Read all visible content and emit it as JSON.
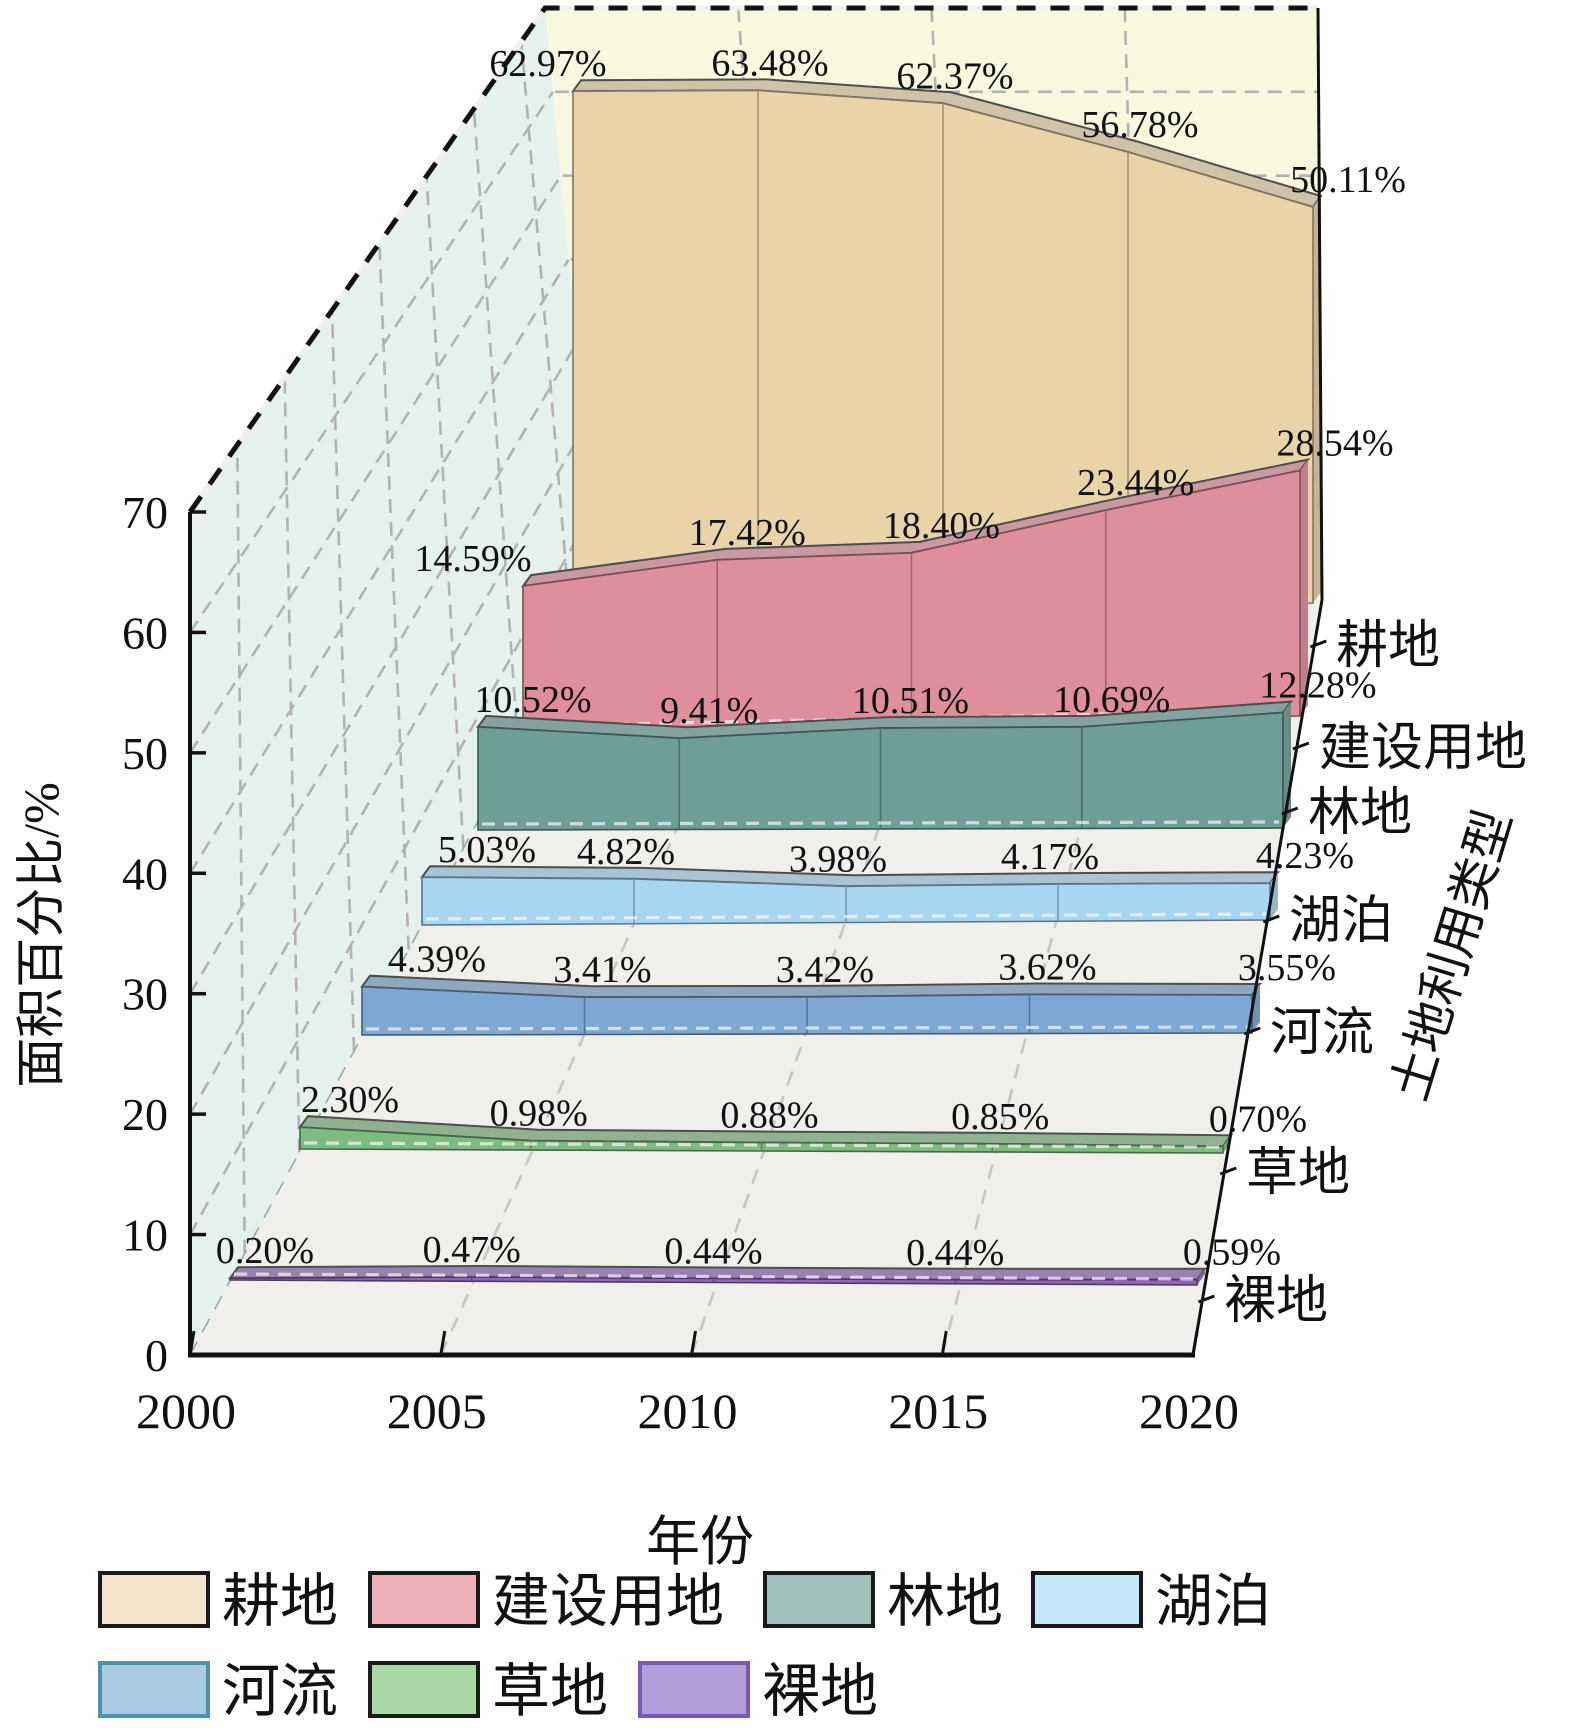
{
  "chart_data": {
    "type": "area",
    "variant": "3d-ribbon",
    "x": [
      2000,
      2005,
      2010,
      2015,
      2020
    ],
    "x_tick_labels": [
      "2000",
      "2005",
      "2010",
      "2015",
      "2020"
    ],
    "y_tick_labels": [
      "0",
      "10",
      "20",
      "30",
      "40",
      "50",
      "60",
      "70"
    ],
    "xlabel": "年份",
    "ylabel": "面积百分比/%",
    "zlabel": "土地利用类型",
    "ylim": [
      0,
      70
    ],
    "grid": true,
    "legend_position": "bottom",
    "series": [
      {
        "key": "cultivated-land",
        "name": "耕地",
        "values": [
          62.97,
          63.48,
          62.37,
          56.78,
          50.11
        ],
        "labels": [
          "62.97%",
          "63.48%",
          "62.37%",
          "56.78%",
          "50.11%"
        ],
        "color": "#E9D4AA",
        "legend_fill": "#F3E3CB",
        "legend_border": "#1a1a1a"
      },
      {
        "key": "construction-land",
        "name": "建设用地",
        "values": [
          14.59,
          17.42,
          18.4,
          23.44,
          28.54
        ],
        "labels": [
          "14.59%",
          "17.42%",
          "18.40%",
          "23.44%",
          "28.54%"
        ],
        "color": "#DF8E9C",
        "legend_fill": "#EDAFBA",
        "legend_border": "#1a1a1a"
      },
      {
        "key": "forest",
        "name": "林地",
        "values": [
          10.52,
          9.41,
          10.51,
          10.69,
          12.28
        ],
        "labels": [
          "10.52%",
          "9.41%",
          "10.51%",
          "10.69%",
          "12.28%"
        ],
        "color": "#6F9E97",
        "legend_fill": "#9EC2BB",
        "legend_border": "#1a1a1a"
      },
      {
        "key": "lake",
        "name": "湖泊",
        "values": [
          5.03,
          4.82,
          3.98,
          4.17,
          4.23
        ],
        "labels": [
          "5.03%",
          "4.82%",
          "3.98%",
          "4.17%",
          "4.23%"
        ],
        "color": "#A8D5F1",
        "legend_fill": "#C6E9FA",
        "legend_border": "#1a1a1a"
      },
      {
        "key": "river",
        "name": "河流",
        "values": [
          4.39,
          3.41,
          3.42,
          3.62,
          3.55
        ],
        "labels": [
          "4.39%",
          "3.41%",
          "3.42%",
          "3.62%",
          "3.55%"
        ],
        "color": "#7EA8D1",
        "legend_fill": "#A9CBE2",
        "legend_border": "#4E93AE"
      },
      {
        "key": "grassland",
        "name": "草地",
        "values": [
          2.3,
          0.98,
          0.88,
          0.85,
          0.7
        ],
        "labels": [
          "2.30%",
          "0.98%",
          "0.88%",
          "0.85%",
          "0.70%"
        ],
        "color": "#7EBB82",
        "legend_fill": "#A8D9A4",
        "legend_border": "#1a1a1a"
      },
      {
        "key": "bare-land",
        "name": "裸地",
        "values": [
          0.2,
          0.47,
          0.44,
          0.44,
          0.59
        ],
        "labels": [
          "0.20%",
          "0.47%",
          "0.44%",
          "0.44%",
          "0.59%"
        ],
        "color": "#8B68B7",
        "legend_fill": "#B49CD8",
        "legend_border": "#7A5AB0"
      }
    ],
    "legend_rows": [
      [
        "耕地",
        "建设用地",
        "林地",
        "湖泊"
      ],
      [
        "河流",
        "草地",
        "裸地"
      ]
    ],
    "wall_colors": {
      "left_wall": "#E4F1ED",
      "back_wall": "#F8F8DE",
      "floor": "#F0EFEB"
    }
  }
}
